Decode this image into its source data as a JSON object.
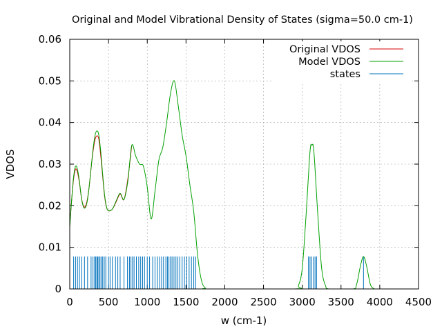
{
  "chart_data": {
    "type": "line",
    "title": "Original and Model Vibrational Density of States (sigma=50.0 cm-1)",
    "xlabel": "w (cm-1)",
    "ylabel": "VDOS",
    "xlim": [
      0,
      4500
    ],
    "ylim": [
      0,
      0.06
    ],
    "x_ticks": [
      "0",
      "500",
      "1000",
      "1500",
      "2000",
      "2500",
      "3000",
      "3500",
      "4000",
      "4500"
    ],
    "y_ticks": [
      "0",
      "0.01",
      "0.02",
      "0.03",
      "0.04",
      "0.05",
      "0.06"
    ],
    "grid": true,
    "legend_position": "top-right",
    "series": [
      {
        "name": "Original VDOS",
        "color": "#d40000",
        "points": [
          [
            0,
            0.0152
          ],
          [
            25,
            0.0215
          ],
          [
            50,
            0.0265
          ],
          [
            75,
            0.0288
          ],
          [
            100,
            0.028
          ],
          [
            125,
            0.0255
          ],
          [
            150,
            0.022
          ],
          [
            175,
            0.02
          ],
          [
            200,
            0.0198
          ],
          [
            225,
            0.0213
          ],
          [
            250,
            0.0245
          ],
          [
            275,
            0.029
          ],
          [
            300,
            0.033
          ],
          [
            325,
            0.0358
          ],
          [
            350,
            0.0368
          ],
          [
            375,
            0.036
          ],
          [
            400,
            0.032
          ],
          [
            425,
            0.027
          ],
          [
            450,
            0.0222
          ],
          [
            475,
            0.0196
          ],
          [
            500,
            0.0188
          ],
          [
            550,
            0.0192
          ],
          [
            600,
            0.021
          ],
          [
            650,
            0.0228
          ],
          [
            700,
            0.0215
          ],
          [
            750,
            0.0265
          ],
          [
            800,
            0.0345
          ]
        ]
      },
      {
        "name": "Model VDOS",
        "color": "#00a000",
        "points": [
          [
            0,
            0.0148
          ],
          [
            25,
            0.0215
          ],
          [
            50,
            0.027
          ],
          [
            75,
            0.0295
          ],
          [
            100,
            0.0287
          ],
          [
            125,
            0.0258
          ],
          [
            150,
            0.022
          ],
          [
            175,
            0.0198
          ],
          [
            200,
            0.0195
          ],
          [
            225,
            0.021
          ],
          [
            250,
            0.0245
          ],
          [
            275,
            0.029
          ],
          [
            300,
            0.0335
          ],
          [
            325,
            0.0368
          ],
          [
            350,
            0.038
          ],
          [
            375,
            0.037
          ],
          [
            400,
            0.033
          ],
          [
            425,
            0.0275
          ],
          [
            450,
            0.0225
          ],
          [
            475,
            0.0197
          ],
          [
            500,
            0.0188
          ],
          [
            550,
            0.0192
          ],
          [
            600,
            0.0212
          ],
          [
            650,
            0.023
          ],
          [
            700,
            0.0215
          ],
          [
            750,
            0.026
          ],
          [
            800,
            0.0345
          ],
          [
            850,
            0.032
          ],
          [
            900,
            0.03
          ],
          [
            950,
            0.0295
          ],
          [
            1000,
            0.0245
          ],
          [
            1050,
            0.0168
          ],
          [
            1100,
            0.0235
          ],
          [
            1150,
            0.031
          ],
          [
            1200,
            0.034
          ],
          [
            1250,
            0.04
          ],
          [
            1300,
            0.047
          ],
          [
            1350,
            0.05
          ],
          [
            1400,
            0.044
          ],
          [
            1450,
            0.037
          ],
          [
            1500,
            0.032
          ],
          [
            1550,
            0.025
          ],
          [
            1600,
            0.0185
          ],
          [
            1650,
            0.008
          ],
          [
            1700,
            0.002
          ],
          [
            1750,
            0.0002
          ],
          [
            1800,
            0
          ],
          [
            2900,
            0
          ],
          [
            2950,
            0.0008
          ],
          [
            3000,
            0.005
          ],
          [
            3050,
            0.018
          ],
          [
            3100,
            0.033
          ],
          [
            3125,
            0.0345
          ],
          [
            3150,
            0.033
          ],
          [
            3200,
            0.018
          ],
          [
            3250,
            0.005
          ],
          [
            3300,
            0.0008
          ],
          [
            3350,
            0
          ],
          [
            3650,
            0
          ],
          [
            3700,
            0.001
          ],
          [
            3750,
            0.0055
          ],
          [
            3790,
            0.0078
          ],
          [
            3830,
            0.0055
          ],
          [
            3880,
            0.001
          ],
          [
            3930,
            0
          ]
        ]
      },
      {
        "name": "states",
        "color": "#0072bd",
        "height": 0.0078,
        "positions": [
          50,
          75,
          100,
          125,
          155,
          190,
          230,
          275,
          300,
          320,
          335,
          350,
          360,
          375,
          390,
          405,
          425,
          445,
          465,
          500,
          520,
          550,
          590,
          620,
          650,
          700,
          745,
          770,
          790,
          810,
          830,
          860,
          890,
          915,
          940,
          965,
          1000,
          1030,
          1070,
          1100,
          1130,
          1160,
          1185,
          1210,
          1240,
          1260,
          1280,
          1300,
          1320,
          1345,
          1370,
          1395,
          1420,
          1450,
          1480,
          1510,
          1540,
          1570,
          1600,
          1625,
          3080,
          3100,
          3120,
          3145,
          3165,
          3185,
          3790
        ]
      }
    ]
  }
}
